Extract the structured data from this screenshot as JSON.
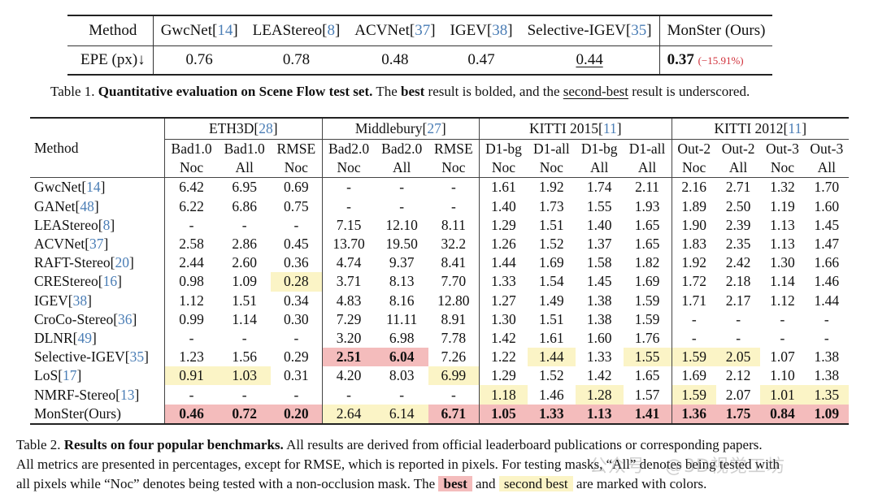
{
  "table1": {
    "header_label": "Method",
    "row_label": "EPE (px)↓",
    "methods": [
      {
        "name": "GwcNet",
        "cite": "14",
        "value": "0.76",
        "style": ""
      },
      {
        "name": "LEAStereo",
        "cite": "8",
        "value": "0.78",
        "style": ""
      },
      {
        "name": "ACVNet",
        "cite": "37",
        "value": "0.48",
        "style": ""
      },
      {
        "name": "IGEV",
        "cite": "38",
        "value": "0.47",
        "style": ""
      },
      {
        "name": "Selective-IGEV",
        "cite": "35",
        "value": "0.44",
        "style": "underline"
      },
      {
        "name": "MonSter (Ours)",
        "cite": "",
        "value": "0.37",
        "style": "bold",
        "delta": "(−15.91%)"
      }
    ],
    "caption": {
      "prefix": "Table 1.",
      "bold": "Quantitative evaluation on Scene Flow test set.",
      "t1": "The",
      "best": "best",
      "t2": "result is bolded, and the",
      "second": "second-best",
      "t3": "result is underscored."
    }
  },
  "table2": {
    "method_header": "Method",
    "groups": [
      {
        "name": "ETH3D",
        "cite": "28",
        "span": 3
      },
      {
        "name": "Middlebury",
        "cite": "27",
        "span": 3
      },
      {
        "name": "KITTI 2015",
        "cite": "11",
        "span": 4
      },
      {
        "name": "KITTI 2012",
        "cite": "11",
        "span": 4
      }
    ],
    "metric_row1": [
      "Bad1.0",
      "Bad1.0",
      "RMSE",
      "Bad2.0",
      "Bad2.0",
      "RMSE",
      "D1-bg",
      "D1-all",
      "D1-bg",
      "D1-all",
      "Out-2",
      "Out-2",
      "Out-3",
      "Out-3"
    ],
    "metric_row2": [
      "Noc",
      "All",
      "Noc",
      "Noc",
      "All",
      "Noc",
      "Noc",
      "Noc",
      "All",
      "All",
      "Noc",
      "All",
      "Noc",
      "All"
    ],
    "rows": [
      {
        "name": "GwcNet",
        "cite": "14",
        "values": [
          "6.42",
          "6.95",
          "0.69",
          "-",
          "-",
          "-",
          "1.61",
          "1.92",
          "1.74",
          "2.11",
          "2.16",
          "2.71",
          "1.32",
          "1.70"
        ],
        "marks": [
          "",
          "",
          "",
          "",
          "",
          "",
          "",
          "",
          "",
          "",
          "",
          "",
          "",
          ""
        ]
      },
      {
        "name": "GANet",
        "cite": "48",
        "values": [
          "6.22",
          "6.86",
          "0.75",
          "-",
          "-",
          "-",
          "1.40",
          "1.73",
          "1.55",
          "1.93",
          "1.89",
          "2.50",
          "1.19",
          "1.60"
        ],
        "marks": [
          "",
          "",
          "",
          "",
          "",
          "",
          "",
          "",
          "",
          "",
          "",
          "",
          "",
          ""
        ]
      },
      {
        "name": "LEAStereo",
        "cite": "8",
        "values": [
          "-",
          "-",
          "-",
          "7.15",
          "12.10",
          "8.11",
          "1.29",
          "1.51",
          "1.40",
          "1.65",
          "1.90",
          "2.39",
          "1.13",
          "1.45"
        ],
        "marks": [
          "",
          "",
          "",
          "",
          "",
          "",
          "",
          "",
          "",
          "",
          "",
          "",
          "",
          ""
        ]
      },
      {
        "name": "ACVNet",
        "cite": "37",
        "values": [
          "2.58",
          "2.86",
          "0.45",
          "13.70",
          "19.50",
          "32.2",
          "1.26",
          "1.52",
          "1.37",
          "1.65",
          "1.83",
          "2.35",
          "1.13",
          "1.47"
        ],
        "marks": [
          "",
          "",
          "",
          "",
          "",
          "",
          "",
          "",
          "",
          "",
          "",
          "",
          "",
          ""
        ]
      },
      {
        "name": "RAFT-Stereo",
        "cite": "20",
        "values": [
          "2.44",
          "2.60",
          "0.36",
          "4.74",
          "9.37",
          "8.41",
          "1.44",
          "1.69",
          "1.58",
          "1.82",
          "1.92",
          "2.42",
          "1.30",
          "1.66"
        ],
        "marks": [
          "",
          "",
          "",
          "",
          "",
          "",
          "",
          "",
          "",
          "",
          "",
          "",
          "",
          ""
        ]
      },
      {
        "name": "CREStereo",
        "cite": "16",
        "values": [
          "0.98",
          "1.09",
          "0.28",
          "3.71",
          "8.13",
          "7.70",
          "1.33",
          "1.54",
          "1.45",
          "1.69",
          "1.72",
          "2.18",
          "1.14",
          "1.46"
        ],
        "marks": [
          "",
          "",
          "second",
          "",
          "",
          "",
          "",
          "",
          "",
          "",
          "",
          "",
          "",
          ""
        ]
      },
      {
        "name": "IGEV",
        "cite": "38",
        "values": [
          "1.12",
          "1.51",
          "0.34",
          "4.83",
          "8.16",
          "12.80",
          "1.27",
          "1.49",
          "1.38",
          "1.59",
          "1.71",
          "2.17",
          "1.12",
          "1.44"
        ],
        "marks": [
          "",
          "",
          "",
          "",
          "",
          "",
          "",
          "",
          "",
          "",
          "",
          "",
          "",
          ""
        ]
      },
      {
        "name": "CroCo-Stereo",
        "cite": "36",
        "values": [
          "0.99",
          "1.14",
          "0.30",
          "7.29",
          "11.11",
          "8.91",
          "1.30",
          "1.51",
          "1.38",
          "1.59",
          "-",
          "-",
          "-",
          "-"
        ],
        "marks": [
          "",
          "",
          "",
          "",
          "",
          "",
          "",
          "",
          "",
          "",
          "",
          "",
          "",
          ""
        ]
      },
      {
        "name": "DLNR",
        "cite": "49",
        "values": [
          "-",
          "-",
          "-",
          "3.20",
          "6.98",
          "7.78",
          "1.42",
          "1.61",
          "1.60",
          "1.76",
          "-",
          "-",
          "-",
          "-"
        ],
        "marks": [
          "",
          "",
          "",
          "",
          "",
          "",
          "",
          "",
          "",
          "",
          "",
          "",
          "",
          ""
        ]
      },
      {
        "name": "Selective-IGEV",
        "cite": "35",
        "values": [
          "1.23",
          "1.56",
          "0.29",
          "2.51",
          "6.04",
          "7.26",
          "1.22",
          "1.44",
          "1.33",
          "1.55",
          "1.59",
          "2.05",
          "1.07",
          "1.38"
        ],
        "marks": [
          "",
          "",
          "",
          "best",
          "best",
          "",
          "",
          "second",
          "",
          "second",
          "second",
          "second",
          "",
          ""
        ]
      },
      {
        "name": "LoS",
        "cite": "17",
        "values": [
          "0.91",
          "1.03",
          "0.31",
          "4.20",
          "8.03",
          "6.99",
          "1.29",
          "1.52",
          "1.42",
          "1.65",
          "1.69",
          "2.12",
          "1.10",
          "1.38"
        ],
        "marks": [
          "second",
          "second",
          "",
          "",
          "",
          "second",
          "",
          "",
          "",
          "",
          "",
          "",
          "",
          ""
        ]
      },
      {
        "name": "NMRF-Stereo",
        "cite": "13",
        "values": [
          "-",
          "-",
          "-",
          "-",
          "-",
          "-",
          "1.18",
          "1.46",
          "1.28",
          "1.57",
          "1.59",
          "2.07",
          "1.01",
          "1.35"
        ],
        "marks": [
          "",
          "",
          "",
          "",
          "",
          "",
          "second",
          "",
          "second",
          "",
          "second",
          "",
          "second",
          "second"
        ]
      },
      {
        "name": "MonSter(Ours)",
        "cite": "",
        "values": [
          "0.46",
          "0.72",
          "0.20",
          "2.64",
          "6.14",
          "6.71",
          "1.05",
          "1.33",
          "1.13",
          "1.41",
          "1.36",
          "1.75",
          "0.84",
          "1.09"
        ],
        "marks": [
          "best",
          "best",
          "best",
          "second",
          "second",
          "best",
          "best",
          "best",
          "best",
          "best",
          "best",
          "best",
          "best",
          "best"
        ]
      }
    ],
    "caption": {
      "prefix": "Table 2.",
      "bold": "Results on four popular benchmarks.",
      "line1_rest": "All results are derived from official leaderboard publications or corresponding papers.",
      "line2": "All metrics are presented in percentages, except for RMSE, which is reported in pixels. For testing masks, “All” denotes being tested with",
      "line3": "all pixels while “Noc” denotes being tested with a non-occlusion mask. The",
      "best": "best",
      "and": "and",
      "second": "second best",
      "end": "are marked with colors."
    }
  },
  "colors": {
    "best": "#f4bcbc",
    "second": "#fbf4c6",
    "cite": "#4a7db5",
    "delta": "#d0303a"
  },
  "watermark": "公众号 · @3D视觉工坊"
}
